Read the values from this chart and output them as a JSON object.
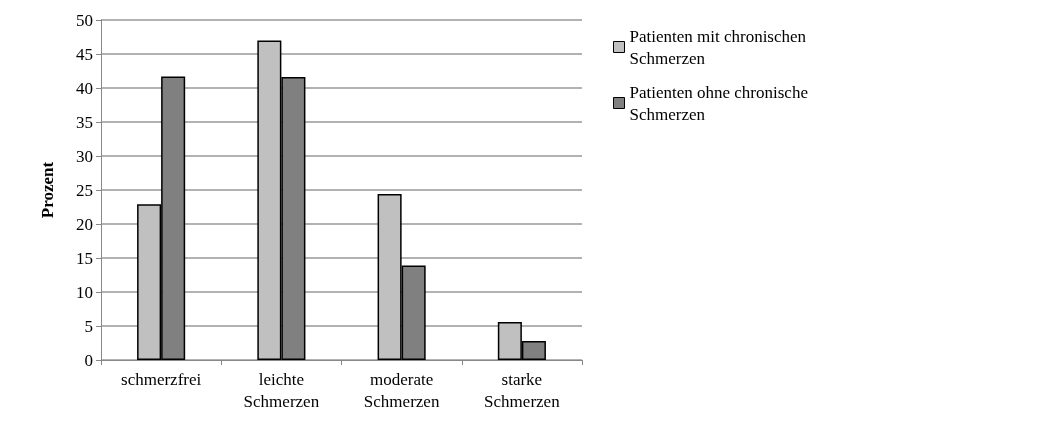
{
  "chart_data": {
    "type": "bar",
    "ylabel": "Prozent",
    "categories": [
      "schmerzfrei",
      "leichte Schmerzen",
      "moderate Schmerzen",
      "starke Schmerzen"
    ],
    "series": [
      {
        "name": "Patienten mit chronischen Schmerzen",
        "color": "#c0c0c0",
        "values": [
          22.9,
          47.0,
          24.4,
          5.6
        ]
      },
      {
        "name": "Patienten ohne chronische Schmerzen",
        "color": "#808080",
        "values": [
          41.7,
          41.6,
          13.9,
          2.8
        ]
      }
    ],
    "ylim": [
      0,
      50
    ],
    "yticks": [
      0,
      5,
      10,
      15,
      20,
      25,
      30,
      35,
      40,
      45,
      50
    ],
    "grid": "y",
    "legend": "top right"
  }
}
